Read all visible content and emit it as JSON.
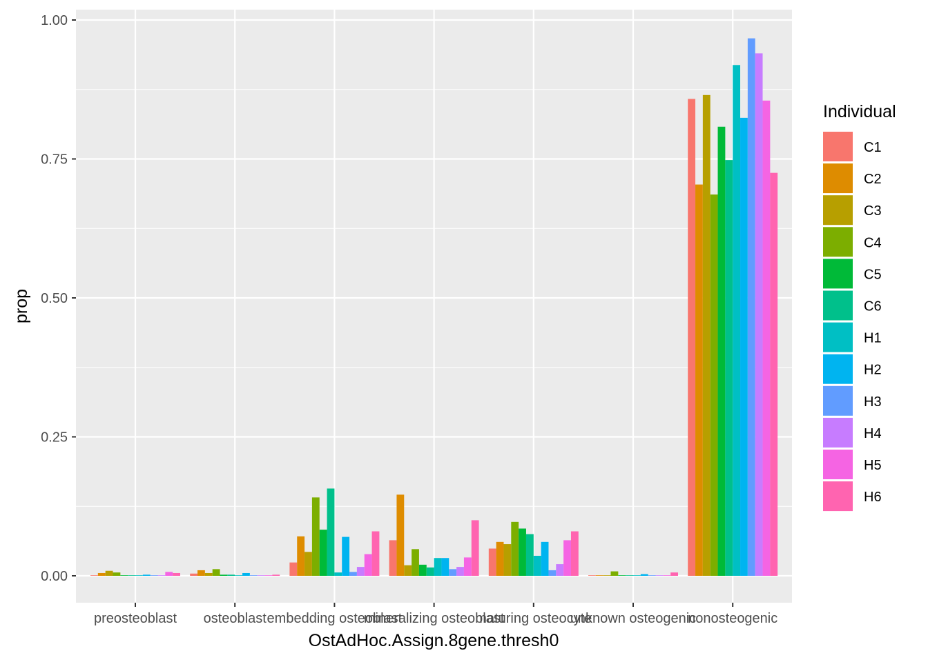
{
  "chart_data": {
    "type": "bar",
    "xlabel": "OstAdHoc.Assign.8gene.thresh0",
    "ylabel": "prop",
    "ylim": [
      -0.05,
      1.02
    ],
    "yticks": [
      0.0,
      0.25,
      0.5,
      0.75,
      1.0
    ],
    "ytick_labels": [
      "0.00",
      "0.25",
      "0.50",
      "0.75",
      "1.00"
    ],
    "grid": true,
    "legend_position": "right",
    "legend_title": "Individual",
    "categories": [
      "preosteoblast",
      "osteoblast",
      "embedding osteoblast",
      "mineralizing osteoblast",
      "maturing osteocyte",
      "unknown osteogenic",
      "nonosteogenic"
    ],
    "series": [
      {
        "name": "C1",
        "color": "#F8766D",
        "values": [
          0.001,
          0.004,
          0.024,
          0.064,
          0.049,
          0.001,
          0.858
        ]
      },
      {
        "name": "C2",
        "color": "#DE8C00",
        "values": [
          0.005,
          0.01,
          0.071,
          0.146,
          0.061,
          0.001,
          0.704
        ]
      },
      {
        "name": "C3",
        "color": "#B79F00",
        "values": [
          0.009,
          0.005,
          0.043,
          0.019,
          0.057,
          0.001,
          0.865
        ]
      },
      {
        "name": "C4",
        "color": "#7CAE00",
        "values": [
          0.006,
          0.012,
          0.141,
          0.048,
          0.097,
          0.008,
          0.686
        ]
      },
      {
        "name": "C5",
        "color": "#00BA38",
        "values": [
          0.001,
          0.002,
          0.083,
          0.02,
          0.085,
          0.001,
          0.808
        ]
      },
      {
        "name": "C6",
        "color": "#00C08B",
        "values": [
          0.001,
          0.002,
          0.157,
          0.015,
          0.075,
          0.001,
          0.748
        ]
      },
      {
        "name": "H1",
        "color": "#00BFC4",
        "values": [
          0.001,
          0.001,
          0.006,
          0.032,
          0.036,
          0.001,
          0.919
        ]
      },
      {
        "name": "H2",
        "color": "#00B4F0",
        "values": [
          0.002,
          0.005,
          0.07,
          0.032,
          0.061,
          0.003,
          0.824
        ]
      },
      {
        "name": "H3",
        "color": "#619CFF",
        "values": [
          0.001,
          0.001,
          0.007,
          0.012,
          0.01,
          0.001,
          0.967
        ]
      },
      {
        "name": "H4",
        "color": "#C77CFF",
        "values": [
          0.001,
          0.001,
          0.016,
          0.016,
          0.021,
          0.001,
          0.94
        ]
      },
      {
        "name": "H5",
        "color": "#F564E3",
        "values": [
          0.007,
          0.001,
          0.039,
          0.033,
          0.064,
          0.001,
          0.855
        ]
      },
      {
        "name": "H6",
        "color": "#FF64B0",
        "values": [
          0.005,
          0.002,
          0.08,
          0.1,
          0.08,
          0.006,
          0.725
        ]
      }
    ]
  }
}
